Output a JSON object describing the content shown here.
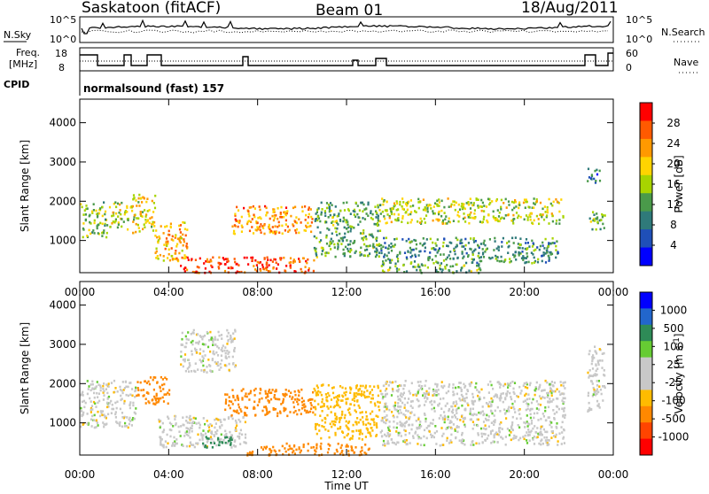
{
  "header": {
    "station": "Saskatoon (fitACF)",
    "beam": "Beam 01",
    "date": "18/Aug/2011"
  },
  "strip_panels": {
    "nsky_label": "N.Sky",
    "nsky_ticks": [
      "10^5",
      "10^0"
    ],
    "nsearch_label": "N.Search",
    "nsearch_ticks": [
      "10^5",
      "10^0"
    ],
    "freq_label_1": "Freq.",
    "freq_label_2": "[MHz]",
    "freq_ticks": [
      "18",
      "8"
    ],
    "nave_label": "Nave",
    "nave_ticks": [
      "60",
      "0"
    ],
    "cpid_label": "CPID",
    "cpid_text": "normalsound (fast) 157"
  },
  "colors": {
    "frame": "#000000",
    "power_scale": [
      "#0000ff",
      "#1f4fb8",
      "#2f7a7a",
      "#4a9a4a",
      "#a8d400",
      "#ffd400",
      "#ff9900",
      "#ff5a00",
      "#ff0000"
    ],
    "velocity_scale": [
      "#ff0000",
      "#ff4400",
      "#ff8800",
      "#ffbb00",
      "#c8c8c8",
      "#c8c8c8",
      "#66cc33",
      "#2e8b57",
      "#2266cc",
      "#0000ff"
    ]
  },
  "chart_data": [
    {
      "type": "heatmap",
      "title": "",
      "xlabel": "",
      "ylabel": "Slant Range [km]",
      "x_ticks": [
        "00:00",
        "04:00",
        "08:00",
        "12:00",
        "16:00",
        "20:00",
        "00:00"
      ],
      "xlim_hours": [
        0,
        24
      ],
      "ylim": [
        180,
        4600
      ],
      "y_ticks": [
        1000,
        2000,
        3000,
        4000
      ],
      "colorbar": {
        "label": "Power [dB]",
        "range": [
          0,
          30
        ],
        "ticks": [
          "28",
          "24",
          "20",
          "16",
          "12",
          "8",
          "4"
        ]
      },
      "echo_regions": [
        {
          "t0": 0.0,
          "t1": 1.2,
          "r0": 1100,
          "r1": 2000,
          "value": 14
        },
        {
          "t0": 1.3,
          "t1": 2.3,
          "r0": 1300,
          "r1": 2000,
          "value": 16
        },
        {
          "t0": 2.3,
          "t1": 3.4,
          "r0": 1200,
          "r1": 2200,
          "value": 18
        },
        {
          "t0": 3.3,
          "t1": 4.8,
          "r0": 500,
          "r1": 1500,
          "value": 20
        },
        {
          "t0": 4.5,
          "t1": 10.5,
          "r0": 200,
          "r1": 600,
          "value": 26
        },
        {
          "t0": 6.8,
          "t1": 10.5,
          "r0": 1200,
          "r1": 1900,
          "value": 22
        },
        {
          "t0": 10.5,
          "t1": 13.5,
          "r0": 600,
          "r1": 2000,
          "value": 12
        },
        {
          "t0": 13.5,
          "t1": 21.8,
          "r0": 1450,
          "r1": 2100,
          "value": 16
        },
        {
          "t0": 13.5,
          "t1": 21.5,
          "r0": 450,
          "r1": 1100,
          "value": 10
        },
        {
          "t0": 22.8,
          "t1": 23.6,
          "r0": 1300,
          "r1": 1800,
          "value": 12
        },
        {
          "t0": 22.8,
          "t1": 23.4,
          "r0": 2500,
          "r1": 2900,
          "value": 8
        },
        {
          "t0": 13.5,
          "t1": 18.0,
          "r0": 200,
          "r1": 450,
          "value": 12
        }
      ]
    },
    {
      "type": "heatmap",
      "title": "",
      "xlabel": "Time UT",
      "ylabel": "Slant Range [km]",
      "x_ticks": [
        "00:00",
        "04:00",
        "08:00",
        "12:00",
        "16:00",
        "20:00",
        "00:00"
      ],
      "xlim_hours": [
        0,
        24
      ],
      "ylim": [
        180,
        4600
      ],
      "y_ticks": [
        1000,
        2000,
        3000,
        4000
      ],
      "colorbar": {
        "label": "Velocity [m s",
        "unit_sup": "-1",
        "unit_close": "]",
        "range": [
          -1200,
          1200
        ],
        "ticks": [
          "1000",
          "500",
          "100",
          "25",
          "-25",
          "-100",
          "-500",
          "-1000"
        ]
      },
      "echo_regions": [
        {
          "t0": 0.0,
          "t1": 2.5,
          "r0": 900,
          "r1": 2100,
          "value": 0
        },
        {
          "t0": 2.5,
          "t1": 4.0,
          "r0": 1500,
          "r1": 2200,
          "value": -300
        },
        {
          "t0": 3.5,
          "t1": 7.5,
          "r0": 400,
          "r1": 1200,
          "value": 0
        },
        {
          "t0": 5.5,
          "t1": 7.0,
          "r0": 400,
          "r1": 700,
          "value": 150
        },
        {
          "t0": 6.5,
          "t1": 10.5,
          "r0": 1200,
          "r1": 1900,
          "value": -200
        },
        {
          "t0": 7.5,
          "t1": 13.0,
          "r0": 200,
          "r1": 500,
          "value": -150
        },
        {
          "t0": 4.5,
          "t1": 7.0,
          "r0": 2300,
          "r1": 3400,
          "value": 0
        },
        {
          "t0": 10.5,
          "t1": 13.5,
          "r0": 600,
          "r1": 2000,
          "value": -60
        },
        {
          "t0": 13.5,
          "t1": 21.8,
          "r0": 450,
          "r1": 2100,
          "value": 0
        },
        {
          "t0": 22.8,
          "t1": 23.6,
          "r0": 1300,
          "r1": 3000,
          "value": 0
        }
      ]
    }
  ]
}
